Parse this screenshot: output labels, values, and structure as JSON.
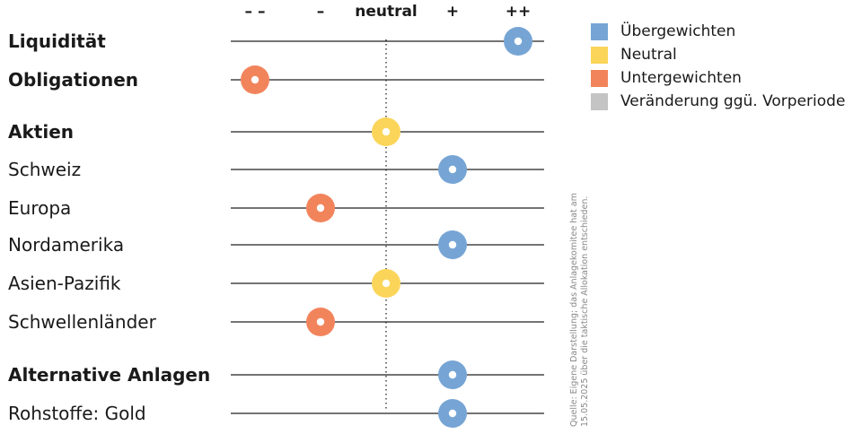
{
  "chart_data": {
    "type": "scatter",
    "columns": [
      "– –",
      "–",
      "neutral",
      "+",
      "++"
    ],
    "neutral_index": 2,
    "rows": [
      {
        "label": "Liquidität",
        "bold": true,
        "value": 4,
        "category": "overweight"
      },
      {
        "label": "Obligationen",
        "bold": true,
        "value": 0,
        "category": "underweight"
      },
      {
        "label": "Aktien",
        "bold": true,
        "value": 2,
        "category": "neutral"
      },
      {
        "label": "Schweiz",
        "bold": false,
        "value": 3,
        "category": "overweight"
      },
      {
        "label": "Europa",
        "bold": false,
        "value": 1,
        "category": "underweight"
      },
      {
        "label": "Nordamerika",
        "bold": false,
        "value": 3,
        "category": "overweight"
      },
      {
        "label": "Asien-Pazifik",
        "bold": false,
        "value": 2,
        "category": "neutral"
      },
      {
        "label": "Schwellenländer",
        "bold": false,
        "value": 1,
        "category": "underweight"
      },
      {
        "label": "Alternative Anlagen",
        "bold": true,
        "value": 3,
        "category": "overweight"
      },
      {
        "label": "Rohstoffe: Gold",
        "bold": false,
        "value": 3,
        "category": "overweight"
      }
    ],
    "colors": {
      "overweight": "#76a5d5",
      "neutral": "#fbd55a",
      "underweight": "#f2845c",
      "change": "#c4c4c4"
    },
    "legend": [
      {
        "key": "overweight",
        "label": "Übergewichten"
      },
      {
        "key": "neutral",
        "label": "Neutral"
      },
      {
        "key": "underweight",
        "label": "Untergewichten"
      },
      {
        "key": "change",
        "label": "Veränderung ggü. Vorperiode"
      }
    ]
  },
  "source_note": "Quelle: Eigene Darstellung; das Anlagekomitee hat am 15.05.2025 über die taktische Allokation entschieden."
}
